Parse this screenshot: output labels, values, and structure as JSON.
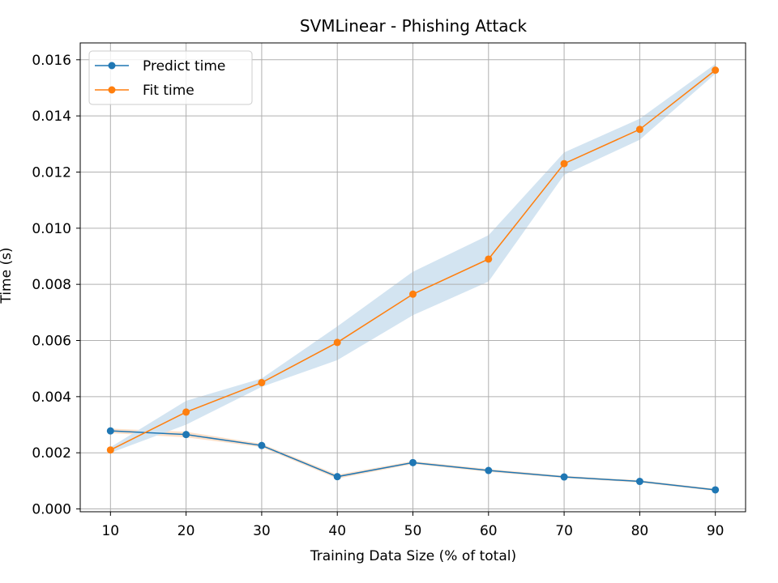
{
  "chart_data": {
    "type": "line",
    "title": "SVMLinear - Phishing Attack",
    "xlabel": "Training Data Size (% of total)",
    "ylabel": "Time (s)",
    "x": [
      10,
      20,
      30,
      40,
      50,
      60,
      70,
      80,
      90
    ],
    "xlim": [
      6,
      94
    ],
    "ylim": [
      -0.0001,
      0.0166
    ],
    "xticks": [
      10,
      20,
      30,
      40,
      50,
      60,
      70,
      80,
      90
    ],
    "yticks": [
      0.0,
      0.002,
      0.004,
      0.006,
      0.008,
      0.01,
      0.012,
      0.014,
      0.016
    ],
    "yticks_labels": [
      "0.000",
      "0.002",
      "0.004",
      "0.006",
      "0.008",
      "0.010",
      "0.012",
      "0.014",
      "0.016"
    ],
    "grid": true,
    "legend_position": "upper-left",
    "series": [
      {
        "name": "Predict time",
        "color": "#1f77b4",
        "values": [
          0.00278,
          0.00265,
          0.00226,
          0.00115,
          0.00165,
          0.00137,
          0.00114,
          0.00098,
          0.00068
        ],
        "band_lower": [
          0.0027,
          0.00255,
          0.0022,
          0.00108,
          0.0016,
          0.00132,
          0.0011,
          0.00094,
          0.00064
        ],
        "band_upper": [
          0.00286,
          0.00275,
          0.00232,
          0.00122,
          0.0017,
          0.00142,
          0.00118,
          0.00102,
          0.00072
        ],
        "band_color": "#ffdfc7"
      },
      {
        "name": "Fit time",
        "color": "#ff7f0e",
        "values": [
          0.0021,
          0.00345,
          0.0045,
          0.00593,
          0.00765,
          0.0089,
          0.0123,
          0.01352,
          0.01563
        ],
        "band_lower": [
          0.002,
          0.003,
          0.00435,
          0.0053,
          0.0069,
          0.0081,
          0.0119,
          0.01315,
          0.0155
        ],
        "band_upper": [
          0.0022,
          0.00385,
          0.00465,
          0.0065,
          0.00845,
          0.00975,
          0.0127,
          0.0139,
          0.01585
        ],
        "band_color": "#d3e4f1"
      }
    ]
  }
}
